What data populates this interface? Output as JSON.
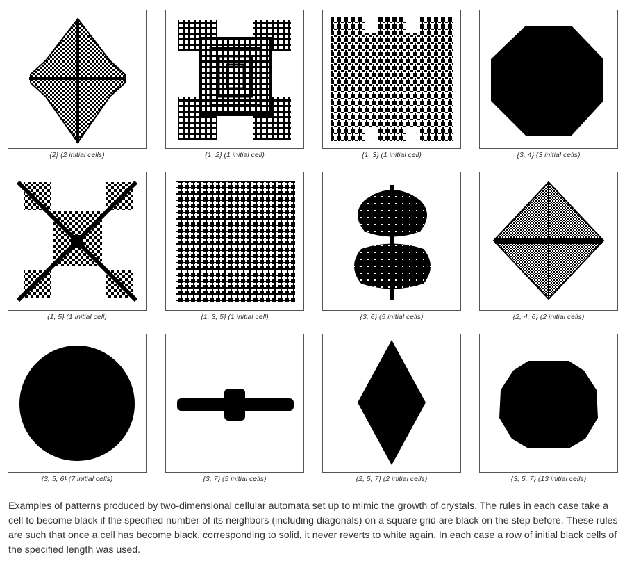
{
  "panels": [
    {
      "caption": "{2} (2 initial cells)",
      "pattern": "diamond-lattice"
    },
    {
      "caption": "{1, 2} (1 initial cell)",
      "pattern": "square-maze"
    },
    {
      "caption": "{1, 3} (1 initial cell)",
      "pattern": "dendritic-square"
    },
    {
      "caption": "{3, 4} (3 initial cells)",
      "pattern": "solid-octagon"
    },
    {
      "caption": "{1, 5} (1 initial cell)",
      "pattern": "diagonal-cross"
    },
    {
      "caption": "{1, 3, 5} (1 initial cell)",
      "pattern": "dendritic-block"
    },
    {
      "caption": "{3, 6} (5 initial cells)",
      "pattern": "blob-pair"
    },
    {
      "caption": "{2, 4, 6} (2 initial cells)",
      "pattern": "checker-diamond"
    },
    {
      "caption": "{3, 5, 6} (7 initial cells)",
      "pattern": "solid-round"
    },
    {
      "caption": "{3, 7} (5 initial cells)",
      "pattern": "horizontal-bar"
    },
    {
      "caption": "{2, 5, 7} (2 initial cells)",
      "pattern": "solid-rhombus"
    },
    {
      "caption": "{3, 5, 7} (13 initial cells)",
      "pattern": "solid-ragged"
    }
  ],
  "description": "Examples of patterns produced by two-dimensional cellular automata set up to mimic the growth of crystals. The rules in each case take a cell to become black if the specified number of its neighbors (including diagonals) on a square grid are black on the step before. These rules are such that once a cell has become black, corresponding to solid, it never reverts to white again. In each case a row of initial black cells of the specified length was used."
}
